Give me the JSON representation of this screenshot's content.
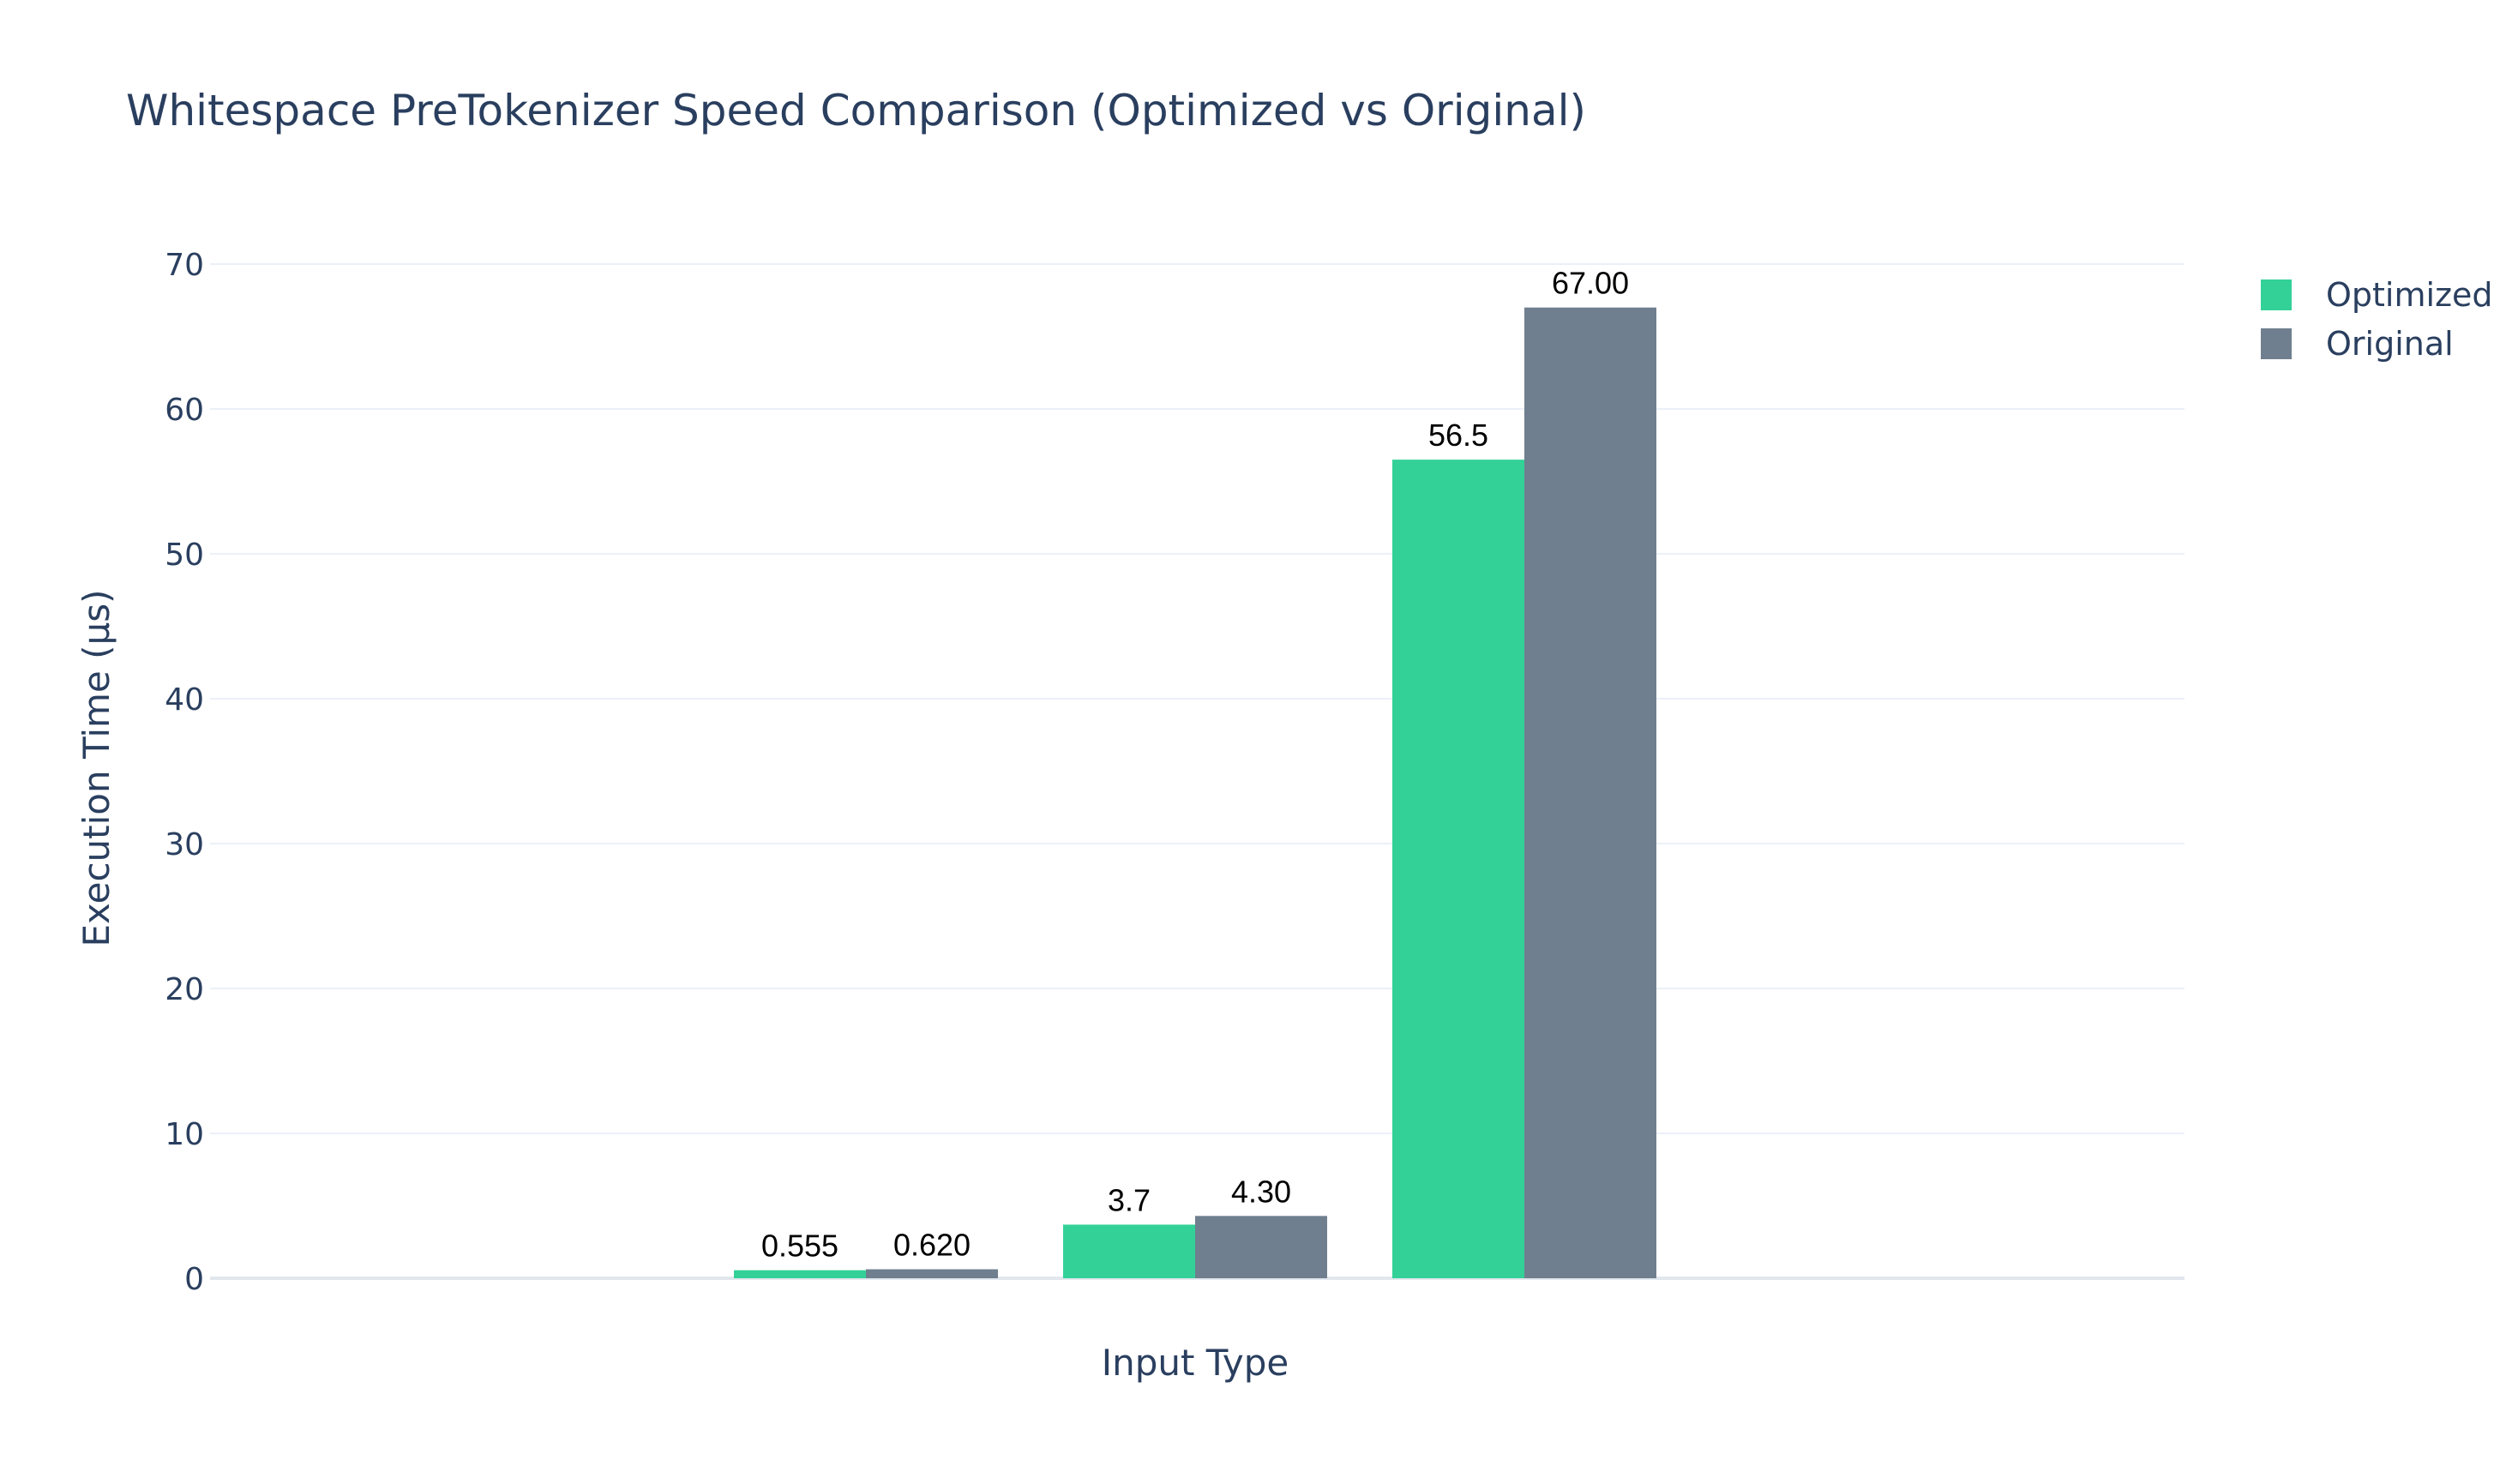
{
  "chart_data": {
    "type": "bar",
    "title": "Whitespace PreTokenizer Speed Comparison (Optimized vs Original)",
    "xlabel": "Input Type",
    "ylabel": "Execution Time (μs)",
    "ylim": [
      0,
      70
    ],
    "yticks": [
      "0",
      "10",
      "20",
      "30",
      "40",
      "50",
      "60",
      "70"
    ],
    "grid": true,
    "legend_position": "top-right",
    "groups": 3,
    "series": [
      {
        "name": "Optimized",
        "color": "#33d197",
        "values": [
          0.555,
          3.7,
          56.5
        ],
        "labels": [
          "0.555",
          "3.7",
          "56.5"
        ]
      },
      {
        "name": "Original",
        "color": "#6f7f8f",
        "values": [
          0.62,
          4.3,
          67.0
        ],
        "labels": [
          "0.620",
          "4.30",
          "67.00"
        ]
      }
    ]
  }
}
